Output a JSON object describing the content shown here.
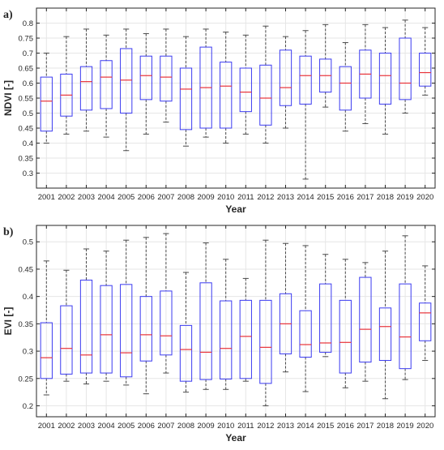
{
  "colors": {
    "box": "#3b3bf0",
    "median": "#e8333a",
    "whisker": "#4a4a4a",
    "grid": "#e6e6e6",
    "axis": "#262626"
  },
  "chart_data": [
    {
      "type": "boxplot",
      "panel_label": "a)",
      "xlabel": "Year",
      "ylabel": "NDVI [-]",
      "ylim": [
        0.25,
        0.85
      ],
      "yticks": [
        0.3,
        0.35,
        0.4,
        0.45,
        0.5,
        0.55,
        0.6,
        0.65,
        0.7,
        0.75,
        0.8
      ],
      "ytick_labels": [
        "0.3",
        "0.35",
        "0.4",
        "0.45",
        "0.5",
        "0.55",
        "0.6",
        "0.65",
        "0.7",
        "0.75",
        "0.8"
      ],
      "grid": true,
      "categories": [
        "2001",
        "2002",
        "2003",
        "2004",
        "2005",
        "2006",
        "2007",
        "2008",
        "2009",
        "2010",
        "2011",
        "2012",
        "2013",
        "2014",
        "2015",
        "2016",
        "2017",
        "2018",
        "2019",
        "2020"
      ],
      "boxes": [
        {
          "min": 0.4,
          "q1": 0.44,
          "median": 0.54,
          "q3": 0.62,
          "max": 0.7
        },
        {
          "min": 0.43,
          "q1": 0.49,
          "median": 0.56,
          "q3": 0.63,
          "max": 0.755
        },
        {
          "min": 0.44,
          "q1": 0.51,
          "median": 0.605,
          "q3": 0.655,
          "max": 0.78
        },
        {
          "min": 0.42,
          "q1": 0.515,
          "median": 0.62,
          "q3": 0.675,
          "max": 0.76
        },
        {
          "min": 0.375,
          "q1": 0.5,
          "median": 0.61,
          "q3": 0.715,
          "max": 0.78
        },
        {
          "min": 0.43,
          "q1": 0.545,
          "median": 0.625,
          "q3": 0.69,
          "max": 0.765
        },
        {
          "min": 0.47,
          "q1": 0.54,
          "median": 0.62,
          "q3": 0.69,
          "max": 0.78
        },
        {
          "min": 0.39,
          "q1": 0.445,
          "median": 0.58,
          "q3": 0.65,
          "max": 0.755
        },
        {
          "min": 0.42,
          "q1": 0.45,
          "median": 0.585,
          "q3": 0.72,
          "max": 0.78
        },
        {
          "min": 0.4,
          "q1": 0.45,
          "median": 0.59,
          "q3": 0.67,
          "max": 0.77
        },
        {
          "min": 0.43,
          "q1": 0.505,
          "median": 0.57,
          "q3": 0.65,
          "max": 0.76
        },
        {
          "min": 0.4,
          "q1": 0.46,
          "median": 0.55,
          "q3": 0.66,
          "max": 0.79
        },
        {
          "min": 0.45,
          "q1": 0.525,
          "median": 0.585,
          "q3": 0.71,
          "max": 0.755
        },
        {
          "min": 0.28,
          "q1": 0.53,
          "median": 0.625,
          "q3": 0.69,
          "max": 0.775
        },
        {
          "min": 0.52,
          "q1": 0.57,
          "median": 0.625,
          "q3": 0.68,
          "max": 0.795
        },
        {
          "min": 0.44,
          "q1": 0.51,
          "median": 0.6,
          "q3": 0.655,
          "max": 0.735
        },
        {
          "min": 0.465,
          "q1": 0.55,
          "median": 0.63,
          "q3": 0.71,
          "max": 0.795
        },
        {
          "min": 0.43,
          "q1": 0.53,
          "median": 0.625,
          "q3": 0.7,
          "max": 0.785
        },
        {
          "min": 0.5,
          "q1": 0.545,
          "median": 0.6,
          "q3": 0.75,
          "max": 0.81
        },
        {
          "min": 0.56,
          "q1": 0.59,
          "median": 0.635,
          "q3": 0.7,
          "max": 0.785
        }
      ]
    },
    {
      "type": "boxplot",
      "panel_label": "b)",
      "xlabel": "Year",
      "ylabel": "EVI [-]",
      "ylim": [
        0.18,
        0.53
      ],
      "yticks": [
        0.2,
        0.25,
        0.3,
        0.35,
        0.4,
        0.45,
        0.5
      ],
      "ytick_labels": [
        "0.2",
        "0.25",
        "0.3",
        "0.35",
        "0.4",
        "0.45",
        "0.5"
      ],
      "grid": true,
      "categories": [
        "2001",
        "2002",
        "2003",
        "2004",
        "2005",
        "2006",
        "2007",
        "2008",
        "2009",
        "2010",
        "2011",
        "2012",
        "2013",
        "2014",
        "2015",
        "2016",
        "2017",
        "2018",
        "2019",
        "2020"
      ],
      "boxes": [
        {
          "min": 0.22,
          "q1": 0.25,
          "median": 0.288,
          "q3": 0.352,
          "max": 0.465
        },
        {
          "min": 0.245,
          "q1": 0.258,
          "median": 0.305,
          "q3": 0.383,
          "max": 0.448
        },
        {
          "min": 0.24,
          "q1": 0.26,
          "median": 0.293,
          "q3": 0.43,
          "max": 0.487
        },
        {
          "min": 0.245,
          "q1": 0.26,
          "median": 0.33,
          "q3": 0.42,
          "max": 0.483
        },
        {
          "min": 0.238,
          "q1": 0.253,
          "median": 0.297,
          "q3": 0.422,
          "max": 0.503
        },
        {
          "min": 0.222,
          "q1": 0.282,
          "median": 0.33,
          "q3": 0.4,
          "max": 0.508
        },
        {
          "min": 0.26,
          "q1": 0.293,
          "median": 0.328,
          "q3": 0.41,
          "max": 0.515
        },
        {
          "min": 0.225,
          "q1": 0.245,
          "median": 0.303,
          "q3": 0.347,
          "max": 0.444
        },
        {
          "min": 0.23,
          "q1": 0.248,
          "median": 0.298,
          "q3": 0.425,
          "max": 0.498
        },
        {
          "min": 0.23,
          "q1": 0.249,
          "median": 0.305,
          "q3": 0.392,
          "max": 0.468
        },
        {
          "min": 0.245,
          "q1": 0.25,
          "median": 0.327,
          "q3": 0.393,
          "max": 0.433
        },
        {
          "min": 0.2,
          "q1": 0.241,
          "median": 0.307,
          "q3": 0.393,
          "max": 0.503
        },
        {
          "min": 0.262,
          "q1": 0.295,
          "median": 0.35,
          "q3": 0.405,
          "max": 0.497
        },
        {
          "min": 0.226,
          "q1": 0.289,
          "median": 0.312,
          "q3": 0.374,
          "max": 0.493
        },
        {
          "min": 0.29,
          "q1": 0.298,
          "median": 0.315,
          "q3": 0.423,
          "max": 0.477
        },
        {
          "min": 0.233,
          "q1": 0.26,
          "median": 0.316,
          "q3": 0.393,
          "max": 0.468
        },
        {
          "min": 0.245,
          "q1": 0.28,
          "median": 0.34,
          "q3": 0.435,
          "max": 0.462
        },
        {
          "min": 0.213,
          "q1": 0.283,
          "median": 0.345,
          "q3": 0.379,
          "max": 0.483
        },
        {
          "min": 0.248,
          "q1": 0.268,
          "median": 0.326,
          "q3": 0.423,
          "max": 0.511
        },
        {
          "min": 0.283,
          "q1": 0.319,
          "median": 0.37,
          "q3": 0.388,
          "max": 0.456
        }
      ]
    }
  ]
}
